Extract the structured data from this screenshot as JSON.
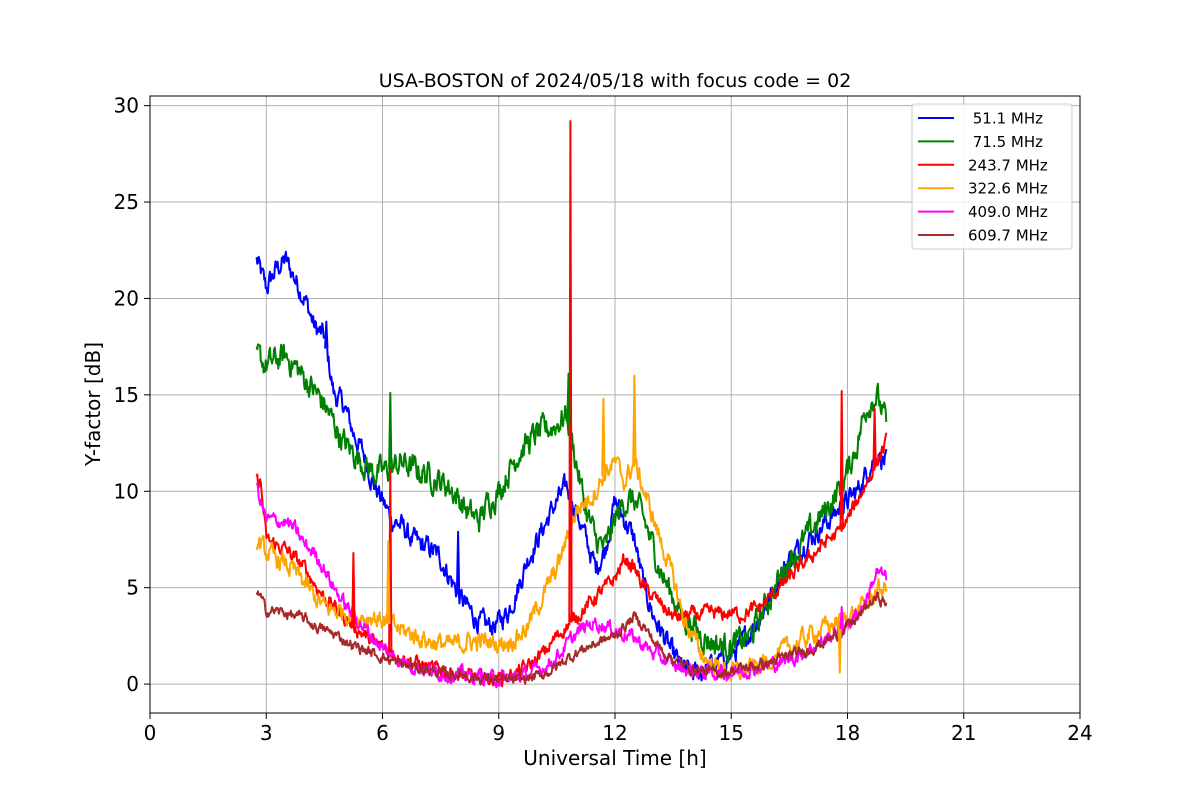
{
  "chart_data": {
    "type": "line",
    "title": "USA-BOSTON of 2024/05/18 with focus code = 02",
    "xlabel": "Universal Time [h]",
    "ylabel": "Y-factor [dB]",
    "xlim": [
      0,
      24
    ],
    "ylim": [
      -1.5,
      30.5
    ],
    "xticks": [
      0,
      3,
      6,
      9,
      12,
      15,
      18,
      21,
      24
    ],
    "yticks": [
      0,
      5,
      10,
      15,
      20,
      25,
      30
    ],
    "grid": true,
    "legend_position": "top-right",
    "series": [
      {
        "name": " 51.1 MHz",
        "color": "#0000ff",
        "noise": 0.45,
        "x": [
          2.75,
          3.0,
          3.25,
          3.5,
          3.75,
          4.0,
          4.25,
          4.5,
          4.75,
          5.0,
          5.25,
          5.5,
          5.75,
          6.0,
          6.25,
          6.5,
          6.75,
          7.0,
          7.25,
          7.5,
          7.75,
          8.0,
          8.25,
          8.5,
          8.75,
          9.0,
          9.25,
          9.5,
          9.75,
          10.0,
          10.25,
          10.5,
          10.75,
          11.0,
          11.25,
          11.5,
          11.75,
          12.0,
          12.25,
          12.5,
          12.75,
          13.0,
          13.25,
          13.5,
          13.75,
          14.0,
          14.25,
          14.5,
          14.75,
          15.0,
          15.25,
          15.5,
          15.75,
          16.0,
          16.25,
          16.5,
          16.75,
          17.0,
          17.25,
          17.5,
          17.75,
          18.0,
          18.25,
          18.5,
          18.75,
          19.0
        ],
        "y": [
          22.0,
          20.5,
          21.5,
          22.0,
          21.0,
          20.0,
          18.5,
          18.0,
          15.0,
          14.5,
          13.0,
          12.0,
          10.5,
          9.5,
          8.5,
          8.2,
          7.5,
          7.2,
          7.0,
          6.5,
          5.5,
          4.5,
          3.8,
          3.2,
          3.0,
          3.2,
          3.8,
          5.0,
          6.5,
          7.5,
          8.5,
          9.5,
          10.2,
          9.0,
          7.5,
          6.0,
          7.0,
          9.5,
          8.5,
          7.5,
          5.0,
          3.5,
          2.5,
          1.5,
          0.8,
          0.5,
          0.6,
          1.0,
          1.2,
          1.5,
          2.0,
          2.8,
          3.5,
          4.5,
          5.5,
          6.5,
          7.0,
          7.5,
          8.0,
          8.5,
          9.0,
          9.5,
          10.0,
          11.0,
          12.0,
          11.5
        ]
      },
      {
        "name": " 71.5 MHz",
        "color": "#008000",
        "noise": 0.55,
        "x": [
          2.75,
          3.0,
          3.25,
          3.5,
          3.75,
          4.0,
          4.25,
          4.5,
          4.75,
          5.0,
          5.25,
          5.5,
          5.75,
          6.0,
          6.25,
          6.5,
          6.75,
          7.0,
          7.25,
          7.5,
          7.75,
          8.0,
          8.25,
          8.5,
          8.75,
          9.0,
          9.25,
          9.5,
          9.75,
          10.0,
          10.25,
          10.5,
          10.75,
          11.0,
          11.25,
          11.5,
          11.75,
          12.0,
          12.25,
          12.5,
          12.75,
          13.0,
          13.25,
          13.5,
          13.75,
          14.0,
          14.25,
          14.5,
          14.75,
          15.0,
          15.25,
          15.5,
          15.75,
          16.0,
          16.25,
          16.5,
          16.75,
          17.0,
          17.25,
          17.5,
          17.75,
          18.0,
          18.25,
          18.5,
          18.75,
          19.0
        ],
        "y": [
          17.0,
          16.5,
          16.8,
          17.0,
          16.5,
          15.8,
          15.2,
          14.5,
          13.5,
          12.5,
          12.0,
          11.5,
          11.0,
          11.0,
          11.2,
          11.5,
          11.2,
          11.0,
          10.8,
          10.5,
          10.2,
          9.5,
          8.8,
          8.5,
          9.5,
          10.0,
          11.0,
          12.0,
          12.5,
          13.0,
          13.2,
          13.5,
          14.0,
          11.5,
          9.0,
          7.5,
          7.0,
          8.5,
          9.5,
          9.5,
          8.5,
          7.0,
          5.5,
          4.5,
          3.5,
          3.0,
          2.5,
          2.2,
          2.0,
          2.0,
          2.2,
          2.5,
          3.5,
          4.5,
          5.5,
          6.5,
          7.0,
          7.8,
          8.5,
          9.2,
          10.0,
          11.0,
          12.5,
          14.5,
          15.0,
          13.5
        ]
      },
      {
        "name": "243.7 MHz",
        "color": "#ff0000",
        "noise": 0.3,
        "x": [
          2.75,
          2.85,
          3.0,
          3.25,
          3.5,
          3.75,
          4.0,
          4.25,
          4.5,
          4.75,
          5.0,
          5.25,
          5.5,
          5.75,
          6.0,
          6.25,
          6.5,
          6.75,
          7.0,
          7.25,
          7.5,
          7.75,
          8.0,
          8.25,
          8.5,
          8.75,
          9.0,
          9.25,
          9.5,
          9.75,
          10.0,
          10.25,
          10.5,
          10.75,
          11.0,
          11.25,
          11.5,
          11.75,
          12.0,
          12.25,
          12.5,
          12.75,
          13.0,
          13.25,
          13.5,
          13.75,
          14.0,
          14.25,
          14.5,
          14.75,
          15.0,
          15.25,
          15.5,
          15.75,
          16.0,
          16.25,
          16.5,
          16.75,
          17.0,
          17.25,
          17.5,
          17.75,
          18.0,
          18.25,
          18.5,
          18.75,
          19.0
        ],
        "y": [
          10.5,
          10.5,
          7.5,
          7.2,
          7.0,
          6.5,
          6.0,
          5.2,
          4.5,
          4.0,
          3.5,
          3.0,
          2.6,
          2.2,
          1.9,
          1.6,
          1.4,
          1.2,
          1.0,
          0.8,
          0.7,
          0.6,
          0.5,
          0.4,
          0.3,
          0.3,
          0.3,
          0.4,
          0.6,
          0.9,
          1.3,
          1.8,
          2.5,
          3.0,
          3.5,
          4.0,
          4.5,
          5.0,
          5.5,
          6.5,
          6.0,
          5.0,
          4.5,
          4.0,
          3.5,
          3.5,
          3.6,
          3.6,
          3.7,
          3.6,
          3.7,
          3.6,
          3.8,
          4.0,
          4.5,
          5.0,
          5.5,
          6.0,
          6.5,
          7.0,
          7.5,
          7.8,
          8.5,
          9.5,
          10.5,
          11.5,
          12.5
        ]
      },
      {
        "name": "322.6 MHz",
        "color": "#ffa500",
        "noise": 0.4,
        "x": [
          2.75,
          3.0,
          3.25,
          3.5,
          3.75,
          4.0,
          4.25,
          4.5,
          4.75,
          5.0,
          5.25,
          5.5,
          5.75,
          6.0,
          6.25,
          6.5,
          6.75,
          7.0,
          7.25,
          7.5,
          7.75,
          8.0,
          8.25,
          8.5,
          8.75,
          9.0,
          9.25,
          9.5,
          9.75,
          10.0,
          10.25,
          10.5,
          10.75,
          11.0,
          11.25,
          11.5,
          11.75,
          12.0,
          12.25,
          12.5,
          12.75,
          13.0,
          13.25,
          13.5,
          13.75,
          14.0,
          14.25,
          14.5,
          14.75,
          15.0,
          15.25,
          15.5,
          15.75,
          16.0,
          16.25,
          16.5,
          16.75,
          17.0,
          17.25,
          17.5,
          17.75,
          18.0,
          18.25,
          18.5,
          18.75,
          19.0
        ],
        "y": [
          7.5,
          6.8,
          6.5,
          6.2,
          5.8,
          5.2,
          4.5,
          4.0,
          3.8,
          3.8,
          3.5,
          3.5,
          3.5,
          3.3,
          3.0,
          2.8,
          2.6,
          2.4,
          2.2,
          2.1,
          2.0,
          2.1,
          2.2,
          2.2,
          2.2,
          2.1,
          2.2,
          2.5,
          3.0,
          4.0,
          5.0,
          6.0,
          7.5,
          9.0,
          9.5,
          10.0,
          11.0,
          11.5,
          10.5,
          11.5,
          10.0,
          8.5,
          7.0,
          5.5,
          3.5,
          2.5,
          1.5,
          1.0,
          0.8,
          0.6,
          0.6,
          0.8,
          1.0,
          1.3,
          1.6,
          1.9,
          2.2,
          2.5,
          2.8,
          3.0,
          3.2,
          3.5,
          3.8,
          4.2,
          4.8,
          5.0
        ]
      },
      {
        "name": "409.0 MHz",
        "color": "#ff00ff",
        "noise": 0.3,
        "x": [
          2.75,
          2.85,
          3.0,
          3.25,
          3.5,
          3.75,
          4.0,
          4.25,
          4.5,
          4.75,
          5.0,
          5.25,
          5.5,
          5.75,
          6.0,
          6.25,
          6.5,
          6.75,
          7.0,
          7.25,
          7.5,
          7.75,
          8.0,
          8.25,
          8.5,
          8.75,
          9.0,
          9.25,
          9.5,
          9.75,
          10.0,
          10.25,
          10.5,
          10.75,
          11.0,
          11.25,
          11.5,
          11.75,
          12.0,
          12.25,
          12.5,
          12.75,
          13.0,
          13.25,
          13.5,
          13.75,
          14.0,
          14.25,
          14.5,
          14.75,
          15.0,
          15.25,
          15.5,
          15.75,
          16.0,
          16.25,
          16.5,
          16.75,
          17.0,
          17.25,
          17.5,
          17.75,
          18.0,
          18.25,
          18.5,
          18.75,
          19.0
        ],
        "y": [
          10.2,
          9.5,
          8.5,
          8.5,
          8.4,
          8.0,
          7.2,
          6.8,
          6.0,
          5.0,
          4.2,
          3.6,
          3.0,
          2.4,
          1.9,
          1.5,
          1.2,
          1.0,
          0.8,
          0.7,
          0.6,
          0.5,
          0.5,
          0.4,
          0.4,
          0.3,
          0.3,
          0.3,
          0.4,
          0.5,
          0.7,
          1.0,
          1.4,
          2.0,
          2.6,
          3.0,
          3.2,
          3.0,
          2.8,
          2.6,
          2.4,
          2.0,
          1.6,
          1.3,
          1.0,
          0.8,
          0.7,
          0.6,
          0.6,
          0.6,
          0.6,
          0.7,
          0.8,
          0.9,
          1.0,
          1.1,
          1.3,
          1.5,
          1.8,
          2.1,
          2.4,
          2.7,
          3.1,
          3.6,
          4.5,
          5.8,
          5.5
        ]
      },
      {
        "name": "609.7 MHz",
        "color": "#a52a2a",
        "noise": 0.22,
        "x": [
          2.75,
          2.85,
          3.0,
          3.25,
          3.5,
          3.75,
          4.0,
          4.25,
          4.5,
          4.75,
          5.0,
          5.25,
          5.5,
          5.75,
          6.0,
          6.25,
          6.5,
          6.75,
          7.0,
          7.25,
          7.5,
          7.75,
          8.0,
          8.25,
          8.5,
          8.75,
          9.0,
          9.25,
          9.5,
          9.75,
          10.0,
          10.25,
          10.5,
          10.75,
          11.0,
          11.25,
          11.5,
          11.75,
          12.0,
          12.25,
          12.5,
          12.75,
          13.0,
          13.25,
          13.5,
          13.75,
          14.0,
          14.25,
          14.5,
          14.75,
          15.0,
          15.25,
          15.5,
          15.75,
          16.0,
          16.25,
          16.5,
          16.75,
          17.0,
          17.25,
          17.5,
          17.75,
          18.0,
          18.25,
          18.5,
          18.75,
          19.0
        ],
        "y": [
          4.8,
          4.5,
          3.8,
          3.8,
          3.7,
          3.5,
          3.4,
          3.0,
          2.8,
          2.6,
          2.3,
          2.0,
          1.8,
          1.6,
          1.4,
          1.2,
          1.0,
          0.9,
          0.8,
          0.7,
          0.6,
          0.5,
          0.5,
          0.4,
          0.3,
          0.3,
          0.2,
          0.2,
          0.2,
          0.3,
          0.4,
          0.6,
          0.9,
          1.3,
          1.6,
          1.9,
          2.1,
          2.3,
          2.5,
          3.0,
          3.5,
          3.0,
          2.2,
          1.7,
          1.3,
          1.0,
          0.8,
          0.7,
          0.6,
          0.6,
          0.7,
          0.8,
          0.9,
          1.0,
          1.1,
          1.3,
          1.5,
          1.6,
          1.8,
          2.0,
          2.3,
          2.6,
          3.0,
          3.4,
          4.0,
          4.5,
          4.2
        ]
      }
    ],
    "spikes": [
      {
        "series": 2,
        "x": 10.85,
        "y": 29.2
      },
      {
        "series": 2,
        "x": 6.2,
        "y": 11.2
      },
      {
        "series": 2,
        "x": 5.25,
        "y": 6.8
      },
      {
        "series": 2,
        "x": 17.85,
        "y": 15.2
      },
      {
        "series": 2,
        "x": 18.7,
        "y": 14.3
      },
      {
        "series": 3,
        "x": 6.15,
        "y": 7.4
      },
      {
        "series": 3,
        "x": 11.7,
        "y": 14.8
      },
      {
        "series": 3,
        "x": 12.5,
        "y": 16.0
      },
      {
        "series": 3,
        "x": 17.8,
        "y": 0.6
      },
      {
        "series": 1,
        "x": 6.2,
        "y": 15.1
      },
      {
        "series": 1,
        "x": 10.8,
        "y": 16.1
      },
      {
        "series": 0,
        "x": 7.95,
        "y": 7.9
      },
      {
        "series": 0,
        "x": 4.55,
        "y": 18.8
      },
      {
        "series": 4,
        "x": 17.85,
        "y": 4.0
      }
    ]
  }
}
